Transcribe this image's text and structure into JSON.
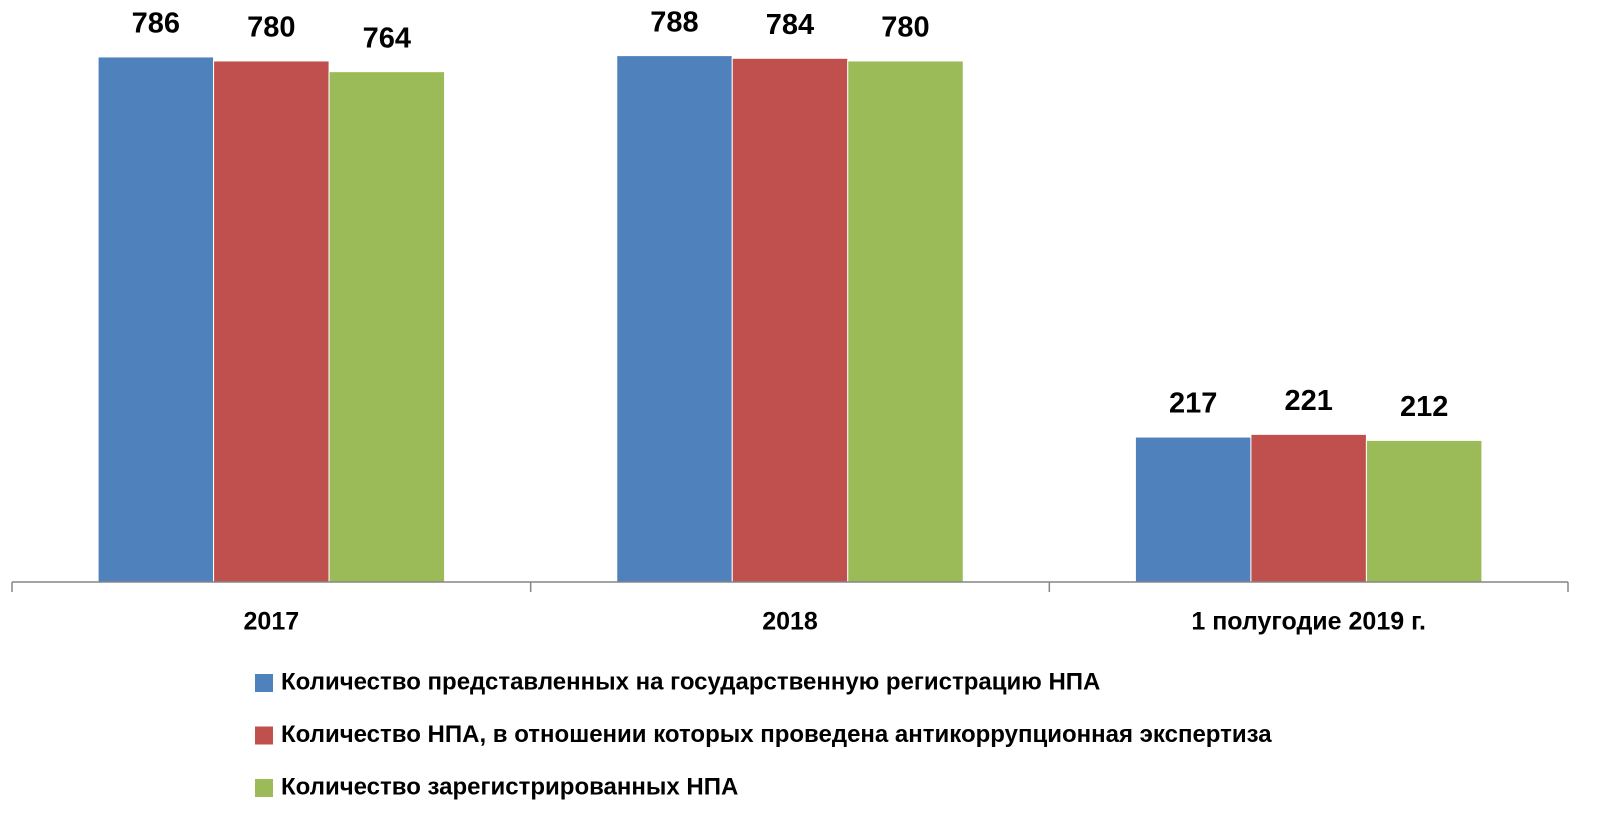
{
  "chart_data": {
    "type": "bar",
    "categories": [
      "2017",
      "2018",
      "1 полугодие 2019 г."
    ],
    "series": [
      {
        "name": "Количество представленных на государственную регистрацию НПА",
        "color": "#4f81bd",
        "values": [
          786,
          788,
          217
        ]
      },
      {
        "name": "Количество НПА, в отношении которых проведена антикоррупционная экспертиза",
        "color": "#c0504d",
        "values": [
          780,
          784,
          221
        ]
      },
      {
        "name": "Количество зарегистрированных НПА",
        "color": "#9bbb59",
        "values": [
          764,
          780,
          212
        ]
      }
    ],
    "ylim": [
      0,
      900
    ]
  }
}
